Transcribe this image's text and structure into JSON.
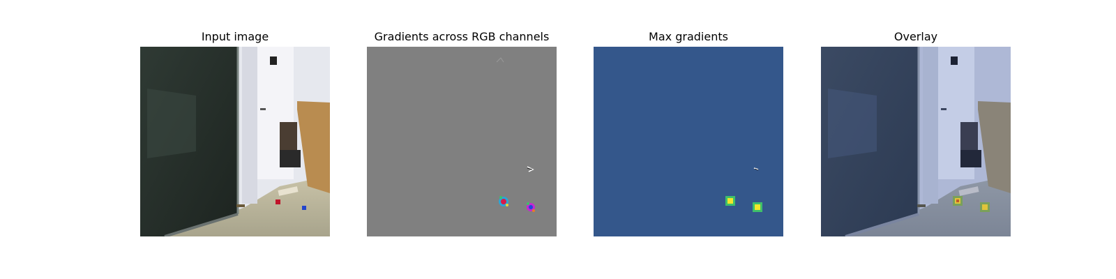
{
  "panels": [
    {
      "title": "Input image",
      "content": "room-photo"
    },
    {
      "title": "Gradients across RGB channels",
      "content": "rgb-gradient-map"
    },
    {
      "title": "Max gradients",
      "content": "max-gradient-heatmap"
    },
    {
      "title": "Overlay",
      "content": "overlay-heatmap"
    }
  ],
  "colors": {
    "gradient_background": "#808080",
    "heatmap_background": "#34578b",
    "overlay_tint": "#4a6aa8",
    "hotspot_yellow": "#f4e62a",
    "hotspot_green": "#3fbf6a"
  }
}
